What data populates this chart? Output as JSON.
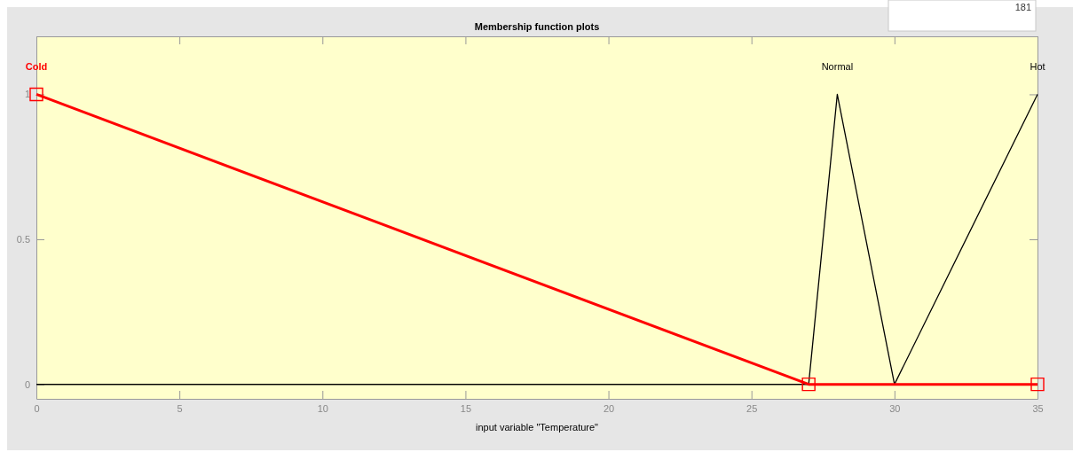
{
  "chart_data": {
    "type": "line",
    "title": "Membership function plots",
    "xlabel": "input variable \"Temperature\"",
    "xlim": [
      0,
      35
    ],
    "xticks": [
      0,
      5,
      10,
      15,
      20,
      25,
      30,
      35
    ],
    "ylim": [
      -0.05,
      1.2
    ],
    "yticks": [
      0,
      0.5,
      1
    ],
    "grid": false,
    "legend": false,
    "line_style": "solid",
    "series": [
      {
        "name": "Normal",
        "color": "#000000",
        "x": [
          0,
          27,
          28,
          30,
          35
        ],
        "values": [
          0,
          0,
          1,
          0,
          0
        ]
      },
      {
        "name": "Hot",
        "color": "#000000",
        "x": [
          0,
          30,
          35
        ],
        "values": [
          0,
          0,
          1
        ]
      },
      {
        "name": "Cold",
        "color": "#ff0000",
        "x": [
          0,
          27,
          35
        ],
        "values": [
          1,
          0,
          0
        ],
        "marker": "square"
      }
    ],
    "annotations": [
      "181"
    ]
  }
}
